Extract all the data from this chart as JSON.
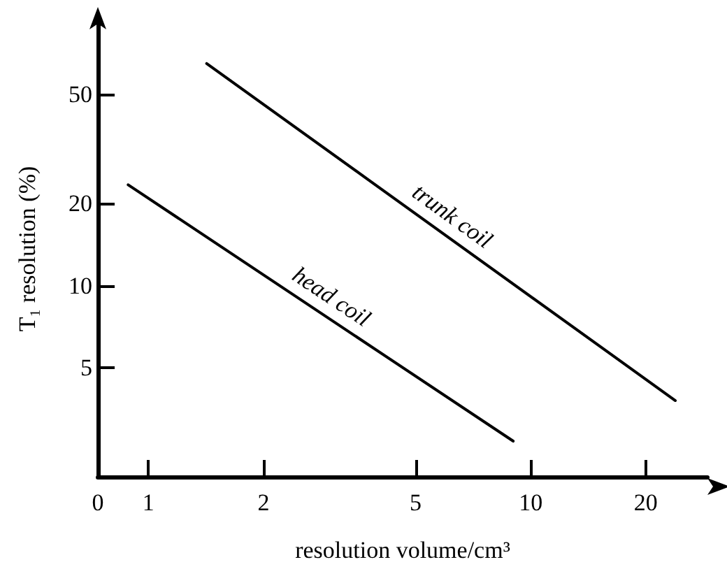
{
  "chart_data": {
    "type": "line",
    "xlabel": "resolution volume/cm³",
    "ylabel": "T₁ resolution (%)",
    "log": "xy",
    "xlim": [
      0,
      29
    ],
    "ylim": [
      2,
      93
    ],
    "xticks": [
      0,
      1,
      2,
      5,
      10,
      20
    ],
    "yticks": [
      5,
      10,
      20,
      50
    ],
    "grid": false,
    "legend": false,
    "marker": "none",
    "line_style": "solid",
    "series": [
      {
        "name": "head coil",
        "color": "#000000",
        "x": [
          0.885,
          9.0
        ],
        "values": [
          23.4,
          2.7
        ]
      },
      {
        "name": "trunk coil",
        "color": "#000000",
        "x": [
          1.42,
          23.9
        ],
        "values": [
          65,
          3.8
        ]
      }
    ]
  }
}
